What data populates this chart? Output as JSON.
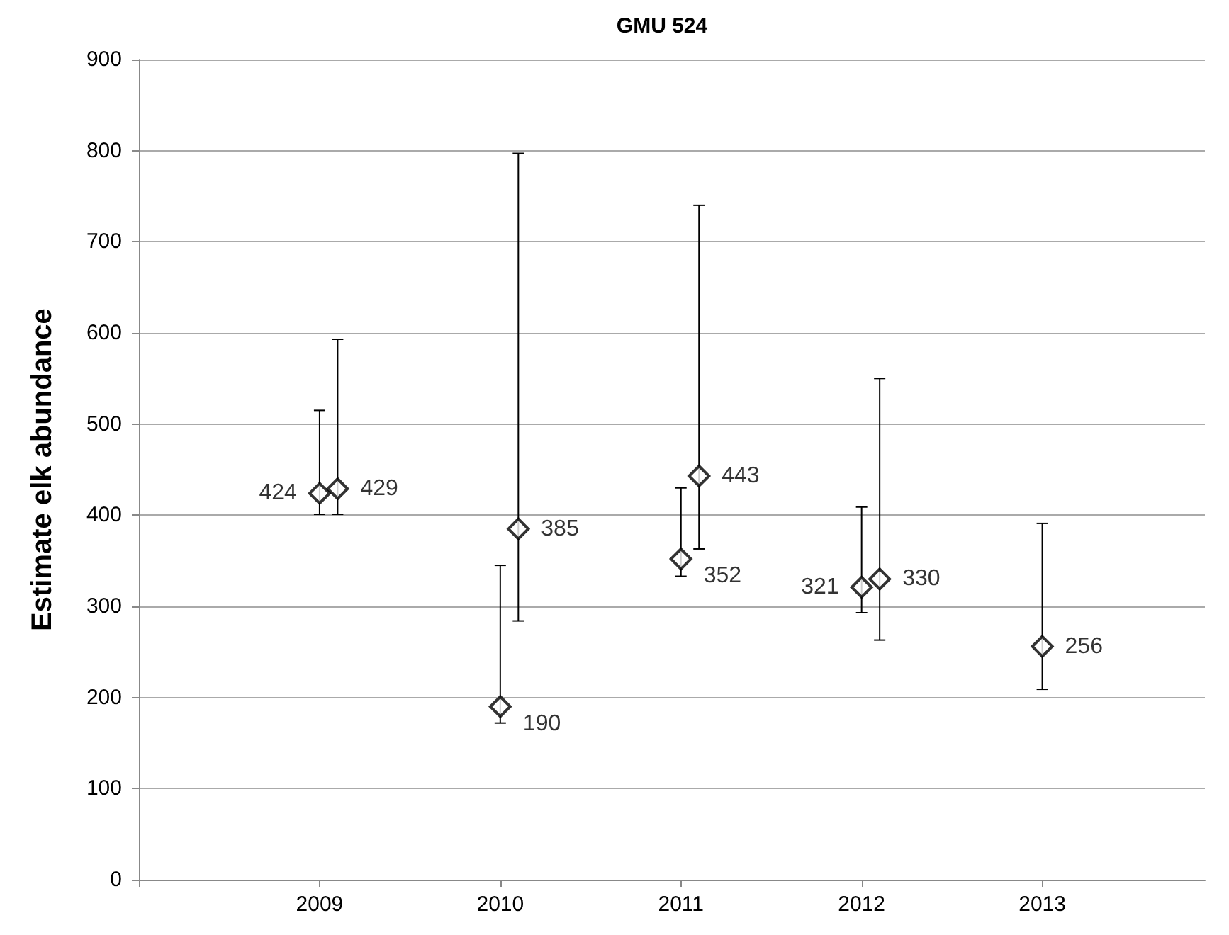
{
  "chart_data": {
    "type": "scatter",
    "title": "GMU 524",
    "ylabel": "Estimate elk abundance",
    "x": [
      2009,
      2009.1,
      2010,
      2010.1,
      2011,
      2011.1,
      2012,
      2012.1,
      2013
    ],
    "values": [
      424,
      429,
      190,
      385,
      352,
      443,
      321,
      330,
      256
    ],
    "errors": [
      [
        401,
        515
      ],
      [
        401,
        593
      ],
      [
        172,
        345
      ],
      [
        284,
        797
      ],
      [
        333,
        430
      ],
      [
        363,
        740
      ],
      [
        293,
        409
      ],
      [
        263,
        550
      ],
      [
        209,
        391
      ]
    ],
    "color": "#000000",
    "marker": "diamond",
    "data_labels": true,
    "xlim": [
      2008,
      2013.9
    ],
    "xticks": [
      {
        "value": 2008,
        "label": null
      },
      2009,
      2010,
      2011,
      2012,
      2013
    ],
    "ylim": [
      0,
      900
    ],
    "yticks": [
      0,
      100,
      200,
      300,
      400,
      500,
      600,
      700,
      800,
      900
    ],
    "grid": "y"
  }
}
